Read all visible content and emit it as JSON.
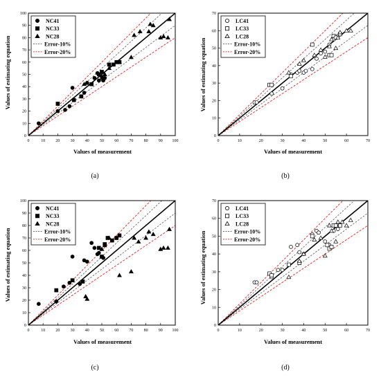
{
  "chart_data": [
    {
      "type": "scatter",
      "caption": "(a)",
      "xlabel": "Values of measurement",
      "ylabel": "Values of estimating equation",
      "xlim": [
        0,
        100
      ],
      "ylim": [
        0,
        100
      ],
      "xticks": [
        0,
        10,
        20,
        30,
        40,
        50,
        60,
        70,
        80,
        90,
        100
      ],
      "yticks": [
        0,
        10,
        20,
        30,
        40,
        50,
        60,
        70,
        80,
        90,
        100
      ],
      "grid": false,
      "legend": "top-left",
      "reference_lines": [
        {
          "name": "Error-10%",
          "style": "dashed",
          "color": "#555555"
        },
        {
          "name": "Error-20%",
          "style": "dashed",
          "color": "#e02020"
        }
      ],
      "series": [
        {
          "name": "NC41",
          "marker": "filled-circle",
          "points": [
            [
              7,
              10
            ],
            [
              20,
              20
            ],
            [
              25,
              21
            ],
            [
              28,
              24
            ],
            [
              30,
              39
            ],
            [
              36,
              32
            ],
            [
              38,
              35
            ],
            [
              40,
              43
            ],
            [
              45,
              47
            ],
            [
              47,
              51
            ],
            [
              48,
              45
            ],
            [
              50,
              48
            ],
            [
              51,
              45
            ],
            [
              52,
              47
            ]
          ]
        },
        {
          "name": "NC33",
          "marker": "filled-square",
          "points": [
            [
              20,
              26
            ],
            [
              31,
              29
            ],
            [
              36,
              32
            ],
            [
              43,
              42
            ],
            [
              48,
              50
            ],
            [
              50,
              52
            ],
            [
              55,
              58
            ],
            [
              58,
              58
            ],
            [
              60,
              60
            ],
            [
              62,
              60
            ]
          ]
        },
        {
          "name": "NC28",
          "marker": "filled-triangle",
          "points": [
            [
              38,
              42
            ],
            [
              40,
              43
            ],
            [
              50,
              47
            ],
            [
              52,
              50
            ],
            [
              55,
              55
            ],
            [
              62,
              60
            ],
            [
              70,
              64
            ],
            [
              72,
              82
            ],
            [
              76,
              85
            ],
            [
              82,
              85
            ],
            [
              83,
              91
            ],
            [
              85,
              90
            ],
            [
              90,
              80
            ],
            [
              92,
              81
            ],
            [
              95,
              80
            ],
            [
              96,
              95
            ]
          ]
        }
      ]
    },
    {
      "type": "scatter",
      "caption": "(b)",
      "xlabel": "Values of measurement",
      "ylabel": "Values of estimating equation",
      "xlim": [
        0,
        70
      ],
      "ylim": [
        0,
        70
      ],
      "xticks": [
        0,
        10,
        20,
        30,
        40,
        50,
        60,
        70
      ],
      "yticks": [
        0,
        10,
        20,
        30,
        40,
        50,
        60,
        70
      ],
      "grid": false,
      "legend": "top-left",
      "reference_lines": [
        {
          "name": "Error-10%",
          "style": "dashed",
          "color": "#555555"
        },
        {
          "name": "Error-20%",
          "style": "dashed",
          "color": "#e02020"
        }
      ],
      "series": [
        {
          "name": "LC41",
          "marker": "open-circle",
          "points": [
            [
              17,
              19
            ],
            [
              18,
              19
            ],
            [
              25,
              24
            ],
            [
              30,
              27
            ],
            [
              34,
              35
            ],
            [
              37,
              36
            ],
            [
              38,
              37
            ],
            [
              40,
              36
            ],
            [
              41,
              37
            ],
            [
              44,
              38
            ],
            [
              46,
              44
            ],
            [
              48,
              47
            ],
            [
              50,
              48
            ],
            [
              52,
              52
            ],
            [
              54,
              55
            ],
            [
              56,
              57
            ]
          ]
        },
        {
          "name": "LC33",
          "marker": "open-square",
          "points": [
            [
              24,
              29
            ],
            [
              25,
              29
            ],
            [
              34,
              34
            ],
            [
              44,
              52
            ],
            [
              52,
              46
            ],
            [
              53,
              46
            ],
            [
              54,
              57
            ],
            [
              55,
              56
            ],
            [
              57,
              58
            ]
          ]
        },
        {
          "name": "LC28",
          "marker": "open-triangle",
          "points": [
            [
              33,
              36
            ],
            [
              38,
              41
            ],
            [
              40,
              43
            ],
            [
              45,
              46
            ],
            [
              48,
              49
            ],
            [
              50,
              45
            ],
            [
              52,
              51
            ],
            [
              53,
              55
            ],
            [
              55,
              50
            ],
            [
              56,
              56
            ],
            [
              57,
              59
            ],
            [
              60,
              60
            ],
            [
              62,
              60
            ]
          ]
        }
      ]
    },
    {
      "type": "scatter",
      "caption": "(c)",
      "xlabel": "Values of measurement",
      "ylabel": "Values of estimating equation",
      "xlim": [
        0,
        100
      ],
      "ylim": [
        0,
        100
      ],
      "xticks": [
        0,
        10,
        20,
        30,
        40,
        50,
        60,
        70,
        80,
        90,
        100
      ],
      "yticks": [
        0,
        10,
        20,
        30,
        40,
        50,
        60,
        70,
        80,
        90,
        100
      ],
      "grid": false,
      "legend": "top-left",
      "reference_lines": [
        {
          "name": "Error-10%",
          "style": "dashed",
          "color": "#555555"
        },
        {
          "name": "Error-20%",
          "style": "dashed",
          "color": "#e02020"
        }
      ],
      "series": [
        {
          "name": "NC41",
          "marker": "filled-circle",
          "points": [
            [
              7,
              17
            ],
            [
              19,
              19
            ],
            [
              24,
              31
            ],
            [
              28,
              34
            ],
            [
              30,
              55
            ],
            [
              35,
              33
            ],
            [
              38,
              52
            ],
            [
              40,
              51
            ],
            [
              43,
              66
            ],
            [
              45,
              62
            ],
            [
              47,
              57
            ],
            [
              48,
              58
            ],
            [
              50,
              55
            ],
            [
              51,
              54
            ]
          ]
        },
        {
          "name": "NC33",
          "marker": "filled-square",
          "points": [
            [
              19,
              28
            ],
            [
              30,
              36
            ],
            [
              37,
              35
            ],
            [
              48,
              62
            ],
            [
              50,
              55
            ],
            [
              52,
              65
            ],
            [
              54,
              70
            ],
            [
              57,
              68
            ],
            [
              60,
              70
            ],
            [
              62,
              72
            ]
          ]
        },
        {
          "name": "NC28",
          "marker": "filled-triangle",
          "points": [
            [
              39,
              23
            ],
            [
              40,
              21
            ],
            [
              50,
              61
            ],
            [
              52,
              64
            ],
            [
              55,
              70
            ],
            [
              62,
              40
            ],
            [
              70,
              43
            ],
            [
              72,
              70
            ],
            [
              75,
              67
            ],
            [
              80,
              70
            ],
            [
              82,
              75
            ],
            [
              85,
              73
            ],
            [
              90,
              61
            ],
            [
              92,
              62
            ],
            [
              95,
              62
            ],
            [
              96,
              77
            ]
          ]
        }
      ]
    },
    {
      "type": "scatter",
      "caption": "(d)",
      "xlabel": "Values of measurement",
      "ylabel": "Values of estimating equation",
      "xlim": [
        0,
        70
      ],
      "ylim": [
        0,
        70
      ],
      "xticks": [
        0,
        10,
        20,
        30,
        40,
        50,
        60,
        70
      ],
      "yticks": [
        0,
        10,
        20,
        30,
        40,
        50,
        60,
        70
      ],
      "grid": false,
      "legend": "top-left",
      "reference_lines": [
        {
          "name": "Error-10%",
          "style": "dashed",
          "color": "#555555"
        },
        {
          "name": "Error-20%",
          "style": "dashed",
          "color": "#e02020"
        }
      ],
      "series": [
        {
          "name": "LC41",
          "marker": "open-circle",
          "points": [
            [
              17,
              24
            ],
            [
              18,
              24
            ],
            [
              25,
              27
            ],
            [
              28,
              31
            ],
            [
              30,
              31
            ],
            [
              34,
              44
            ],
            [
              37,
              45
            ],
            [
              38,
              41
            ],
            [
              40,
              40
            ],
            [
              44,
              51
            ],
            [
              46,
              53
            ],
            [
              47,
              52
            ],
            [
              50,
              47
            ],
            [
              52,
              45
            ],
            [
              54,
              53
            ],
            [
              56,
              54
            ]
          ]
        },
        {
          "name": "LC33",
          "marker": "open-square",
          "points": [
            [
              24,
              29
            ],
            [
              25,
              28
            ],
            [
              33,
              34
            ],
            [
              38,
              35
            ],
            [
              44,
              50
            ],
            [
              51,
              45
            ],
            [
              52,
              43
            ],
            [
              53,
              44
            ],
            [
              54,
              56
            ],
            [
              55,
              56
            ],
            [
              57,
              56
            ]
          ]
        },
        {
          "name": "LC28",
          "marker": "open-triangle",
          "points": [
            [
              33,
              27
            ],
            [
              38,
              36
            ],
            [
              40,
              40
            ],
            [
              45,
              48
            ],
            [
              48,
              49
            ],
            [
              50,
              39
            ],
            [
              52,
              56
            ],
            [
              53,
              53
            ],
            [
              55,
              47
            ],
            [
              56,
              58
            ],
            [
              58,
              58
            ],
            [
              60,
              56
            ],
            [
              62,
              59
            ]
          ]
        }
      ]
    }
  ]
}
